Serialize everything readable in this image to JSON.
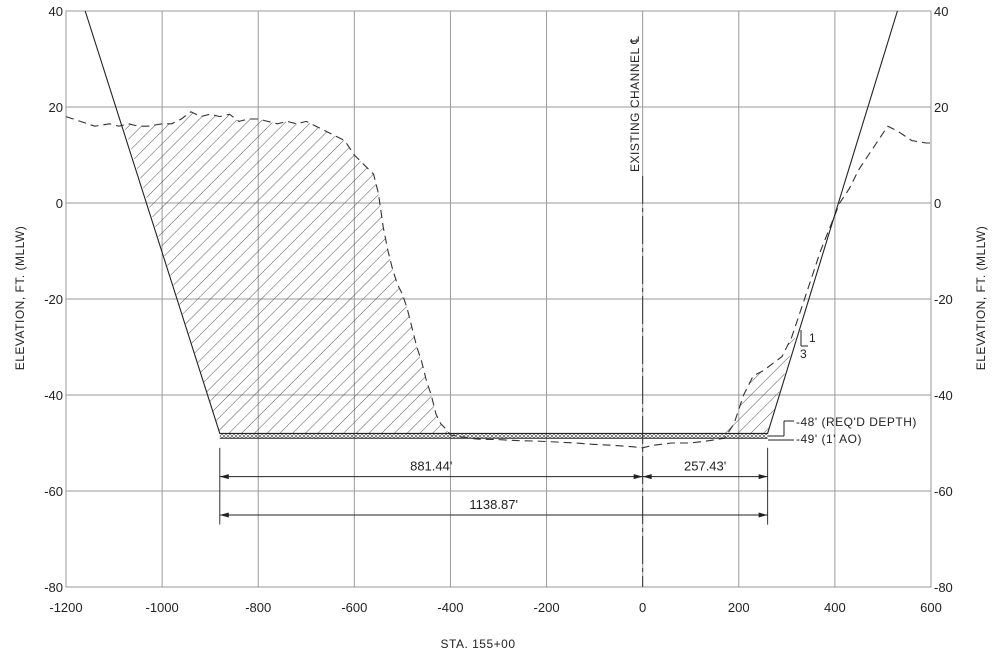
{
  "chart_data": {
    "type": "line",
    "title": "",
    "xlabel": "STA. 155+00",
    "ylabel_left": "ELEVATION, FT. (MLLW)",
    "ylabel_right": "ELEVATION, FT. (MLLW)",
    "xlim": [
      -1200,
      600
    ],
    "ylim": [
      -80,
      40
    ],
    "grid": true,
    "x_ticks": [
      -1200,
      -1000,
      -800,
      -600,
      -400,
      -200,
      0,
      200,
      400,
      600
    ],
    "y_ticks": [
      40,
      20,
      0,
      -20,
      -40,
      -60,
      -80
    ],
    "x_tick_labels": [
      "-1200",
      "-1000",
      "-800",
      "-600",
      "-400",
      "-200",
      "0",
      "200",
      "400",
      "600"
    ],
    "y_tick_labels_left": [
      "40",
      "20",
      "0",
      "-20",
      "-40",
      "-60",
      "-80"
    ],
    "y_tick_labels_right": [
      "40",
      "20",
      "0",
      "-20",
      "-40",
      "-60",
      "-80"
    ],
    "series": [
      {
        "style": "dashed",
        "x": [
          -1200,
          -1170,
          -1140,
          -1110,
          -1090,
          -1070,
          -1050,
          -1030,
          -1000,
          -980,
          -960,
          -940,
          -920,
          -900,
          -880,
          -860,
          -840,
          -820,
          -800,
          -780,
          -760,
          -740,
          -720,
          -700,
          -680,
          -660,
          -640,
          -620,
          -600,
          -580,
          -560,
          -550,
          -540,
          -530,
          -520,
          -510,
          -500,
          -490,
          -480,
          -470,
          -460,
          -450,
          -440,
          -430,
          -420,
          -410,
          -400,
          -390,
          -380,
          -370,
          -360,
          -340,
          -300,
          -260,
          -220,
          -180,
          -140,
          -100,
          -60,
          -20,
          0,
          20,
          60,
          100,
          140,
          170,
          190,
          210,
          230,
          250,
          270,
          290,
          310,
          330,
          350,
          370,
          390,
          410,
          430,
          450,
          470,
          490,
          510,
          530,
          560,
          590,
          600
        ],
        "y": [
          18,
          17,
          16,
          16.5,
          16,
          16.5,
          16,
          16,
          16.5,
          16.5,
          17.5,
          19,
          18,
          18.5,
          18,
          18.5,
          17,
          17.5,
          17.5,
          17,
          16.5,
          17,
          16.5,
          17,
          16,
          15,
          14,
          13,
          10,
          8,
          6,
          2,
          -5,
          -10,
          -14,
          -17,
          -19,
          -22,
          -26,
          -30,
          -33,
          -37,
          -40,
          -44,
          -46,
          -47,
          -48.3,
          -48.5,
          -48.7,
          -48.8,
          -49,
          -49.2,
          -49.3,
          -49.5,
          -49.6,
          -49.8,
          -50,
          -50.3,
          -50.5,
          -50.8,
          -51,
          -50.5,
          -50,
          -50,
          -49.5,
          -49,
          -46,
          -40,
          -36,
          -35,
          -33.5,
          -32,
          -28,
          -22,
          -16,
          -10,
          -5,
          0,
          3,
          7,
          10,
          13,
          16,
          15,
          13,
          12.5,
          12.5
        ]
      },
      {
        "style": "solid",
        "x": [
          -1160,
          -880,
          260,
          530
        ],
        "y": [
          40,
          -48,
          -48,
          40
        ]
      },
      {
        "style": "solid",
        "x": [
          -880,
          260
        ],
        "y": [
          -49,
          -49
        ]
      }
    ],
    "centerline": {
      "x": 0,
      "label": "EXISTING CHANNEL ℄"
    },
    "annotations": {
      "slope_rise": "1",
      "slope_run": "3",
      "depth_required": "-48' (REQ'D DEPTH)",
      "depth_allowable": "-49' (1' AO)"
    },
    "dimensions": [
      {
        "from": -880,
        "to": 0,
        "y": -57,
        "label": "881.44'"
      },
      {
        "from": 0,
        "to": 260,
        "y": -57,
        "label": "257.43'"
      },
      {
        "from": -880,
        "to": 260,
        "y": -65,
        "label": "1138.87'"
      }
    ]
  }
}
